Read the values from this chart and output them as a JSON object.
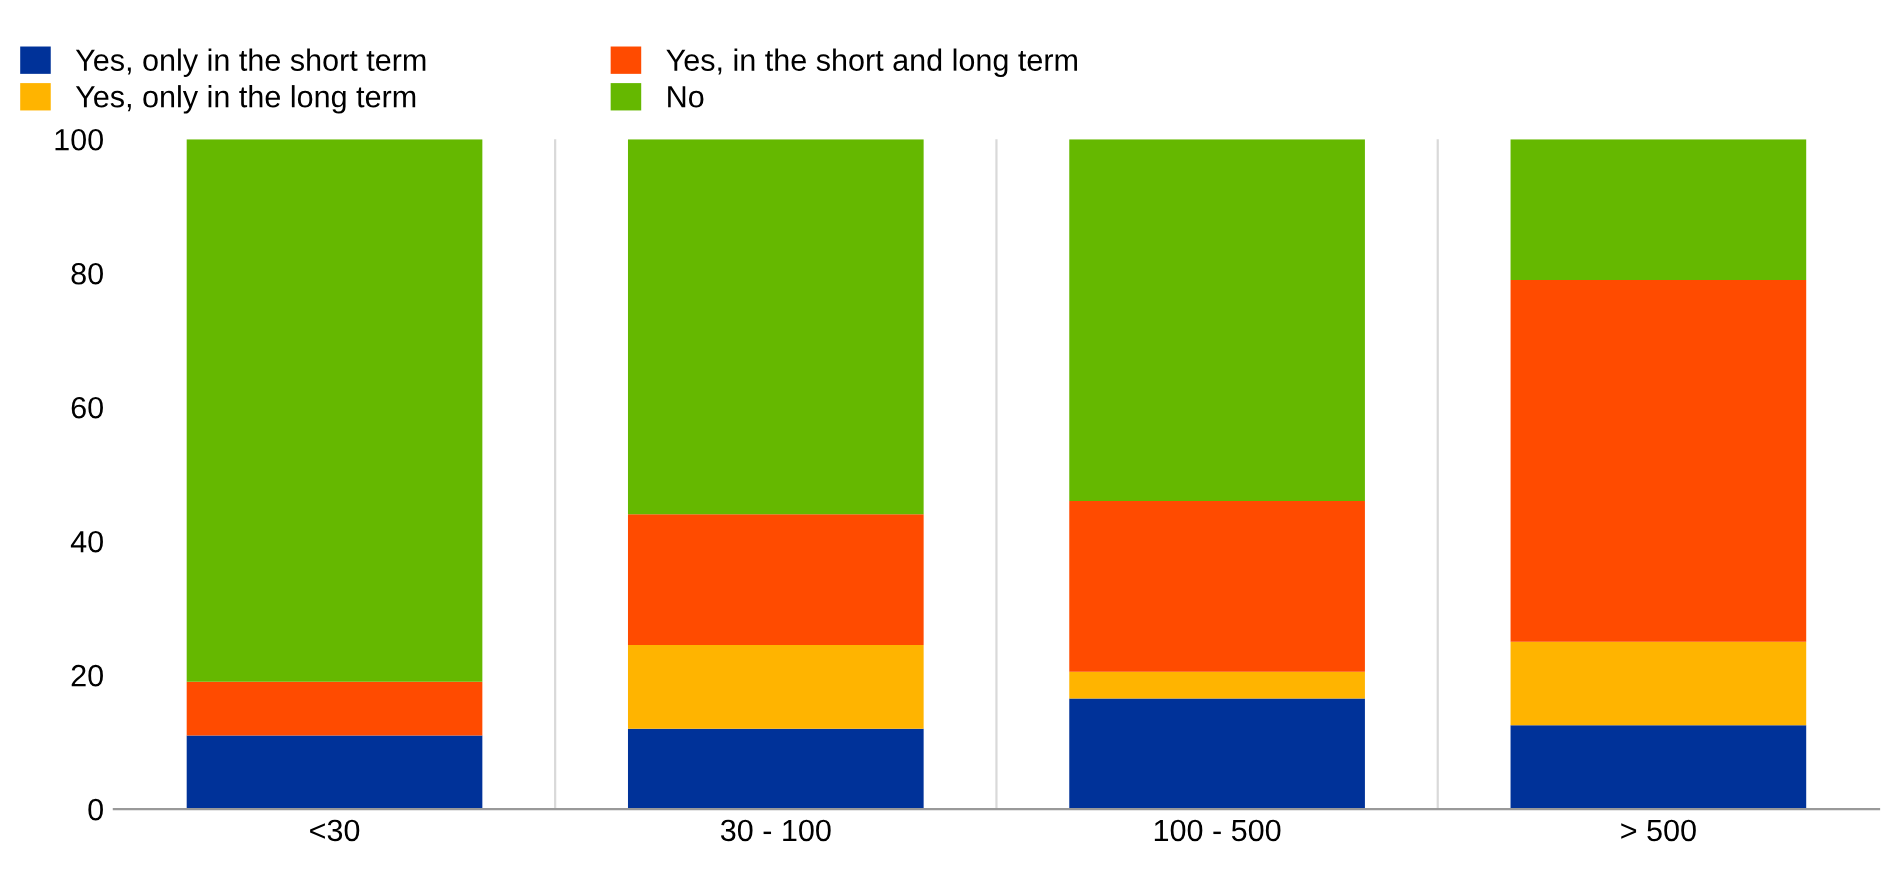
{
  "chart_data": {
    "type": "bar",
    "stacked": true,
    "categories": [
      "<30",
      "30 - 100",
      "100 - 500",
      "> 500"
    ],
    "series": [
      {
        "name": "Yes, only in the short term",
        "color": "#003299",
        "values": [
          11,
          12,
          16.5,
          12.5
        ]
      },
      {
        "name": "Yes, only in the long term",
        "color": "#ffb400",
        "values": [
          0,
          12.5,
          4,
          12.5
        ]
      },
      {
        "name": "Yes, in the short and long term",
        "color": "#ff4b00",
        "values": [
          8,
          19.5,
          25.5,
          54
        ]
      },
      {
        "name": "No",
        "color": "#65b800",
        "values": [
          81,
          56,
          54,
          21
        ]
      }
    ],
    "ylim": [
      0,
      100
    ],
    "yticks": [
      0,
      20,
      40,
      60,
      80,
      100
    ],
    "grid": "x",
    "legend": "top left"
  }
}
